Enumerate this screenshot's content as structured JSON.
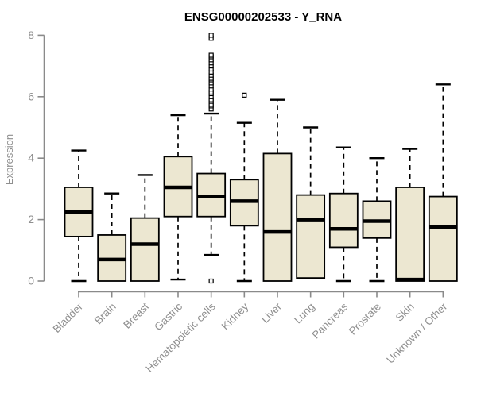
{
  "figure": {
    "title": "ENSG00000202533 - Y_RNA",
    "ylabel": "Expression"
  },
  "chart_data": {
    "type": "boxplot",
    "title": "ENSG00000202533 - Y_RNA",
    "xlabel": "",
    "ylabel": "Expression",
    "ylim": [
      0,
      8
    ],
    "yticks": [
      0,
      2,
      4,
      6,
      8
    ],
    "grid": false,
    "legend": "none",
    "categories": [
      "Bladder",
      "Brain",
      "Breast",
      "Gastric",
      "Hematopoietic cells",
      "Kidney",
      "Liver",
      "Lung",
      "Pancreas",
      "Prostate",
      "Skin",
      "Unknown / Other"
    ],
    "series": [
      {
        "name": "Bladder",
        "whisker_low": 0,
        "q1": 1.45,
        "median": 2.25,
        "q3": 3.05,
        "whisker_high": 4.25,
        "outliers": []
      },
      {
        "name": "Brain",
        "whisker_low": 0,
        "q1": 0,
        "median": 0.7,
        "q3": 1.5,
        "whisker_high": 2.85,
        "outliers": []
      },
      {
        "name": "Breast",
        "whisker_low": 0,
        "q1": 0,
        "median": 1.2,
        "q3": 2.05,
        "whisker_high": 3.45,
        "outliers": []
      },
      {
        "name": "Gastric",
        "whisker_low": 0.05,
        "q1": 2.1,
        "median": 3.05,
        "q3": 4.05,
        "whisker_high": 5.4,
        "outliers": []
      },
      {
        "name": "Hematopoietic cells",
        "whisker_low": 0.85,
        "q1": 2.1,
        "median": 2.75,
        "q3": 3.5,
        "whisker_high": 5.45,
        "outliers": [
          0,
          5.6,
          5.7,
          5.75,
          5.85,
          5.9,
          6.0,
          6.1,
          6.15,
          6.25,
          6.35,
          6.45,
          6.55,
          6.6,
          6.7,
          6.8,
          6.9,
          7.0,
          7.1,
          7.2,
          7.3,
          7.35,
          7.9,
          8.0
        ]
      },
      {
        "name": "Kidney",
        "whisker_low": 0,
        "q1": 1.8,
        "median": 2.6,
        "q3": 3.3,
        "whisker_high": 5.15,
        "outliers": [
          6.05
        ]
      },
      {
        "name": "Liver",
        "whisker_low": 0,
        "q1": 0,
        "median": 1.6,
        "q3": 4.15,
        "whisker_high": 5.9,
        "outliers": []
      },
      {
        "name": "Lung",
        "whisker_low": 0.1,
        "q1": 0.1,
        "median": 2.0,
        "q3": 2.8,
        "whisker_high": 5.0,
        "outliers": []
      },
      {
        "name": "Pancreas",
        "whisker_low": 0,
        "q1": 1.1,
        "median": 1.7,
        "q3": 2.85,
        "whisker_high": 4.35,
        "outliers": []
      },
      {
        "name": "Prostate",
        "whisker_low": 0,
        "q1": 1.4,
        "median": 1.95,
        "q3": 2.6,
        "whisker_high": 4.0,
        "outliers": []
      },
      {
        "name": "Skin",
        "whisker_low": 0,
        "q1": 0,
        "median": 0.05,
        "q3": 3.05,
        "whisker_high": 4.3,
        "outliers": []
      },
      {
        "name": "Unknown / Other",
        "whisker_low": 0,
        "q1": 0,
        "median": 1.75,
        "q3": 2.75,
        "whisker_high": 6.4,
        "outliers": []
      }
    ],
    "colors": {
      "box_fill": "#ece7d1",
      "box_stroke": "#000000",
      "median": "#000000",
      "whisker": "#000000",
      "outlier_stroke": "#000000",
      "outlier_fill": "#ffffff",
      "axis": "#8a8a8a",
      "tick_label": "#8f8f8f",
      "title": "#000000"
    }
  }
}
